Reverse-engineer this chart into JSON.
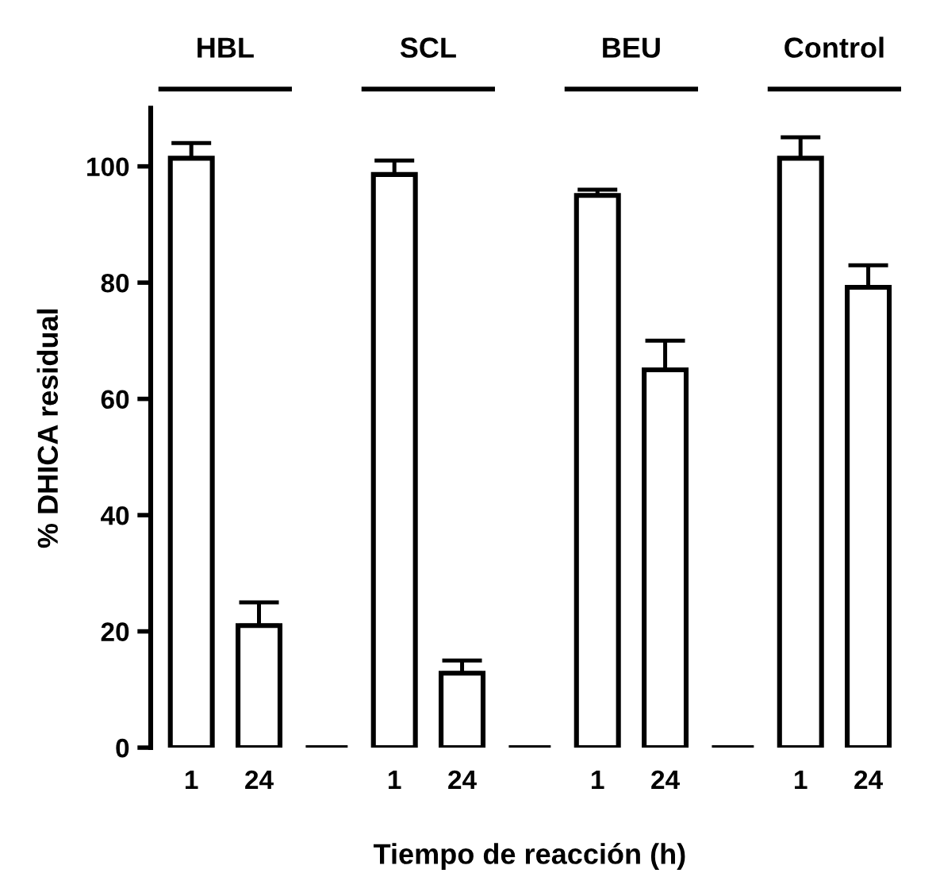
{
  "chart_data": {
    "type": "bar",
    "xlabel": "Tiempo de reacción (h)",
    "ylabel": "% DHICA residual",
    "categories": [
      "1",
      "24",
      null,
      "1",
      "24",
      null,
      "1",
      "24",
      null,
      "1",
      "24"
    ],
    "values": [
      101.4,
      21,
      0,
      98.6,
      12.8,
      0,
      95,
      65,
      0,
      101.4,
      79.2
    ],
    "errors": [
      [
        101.4,
        104
      ],
      [
        21,
        25
      ],
      null,
      [
        98.6,
        101
      ],
      [
        12.8,
        15
      ],
      null,
      [
        95,
        96
      ],
      [
        65,
        70
      ],
      null,
      [
        101.4,
        105
      ],
      [
        79.2,
        83
      ]
    ],
    "colors": [
      "#ffffff",
      "#ffffff",
      "#000000",
      "#ffffff",
      "#ffffff",
      "#000000",
      "#ffffff",
      "#ffffff",
      "#000000",
      "#ffffff",
      "#ffffff"
    ],
    "annotations": [
      "HBL",
      "SCL",
      "BEU",
      "Control"
    ],
    "ylim": [
      0,
      110
    ],
    "yticks": [
      0,
      20,
      40,
      60,
      80,
      100
    ],
    "grid": false,
    "legend": false
  }
}
